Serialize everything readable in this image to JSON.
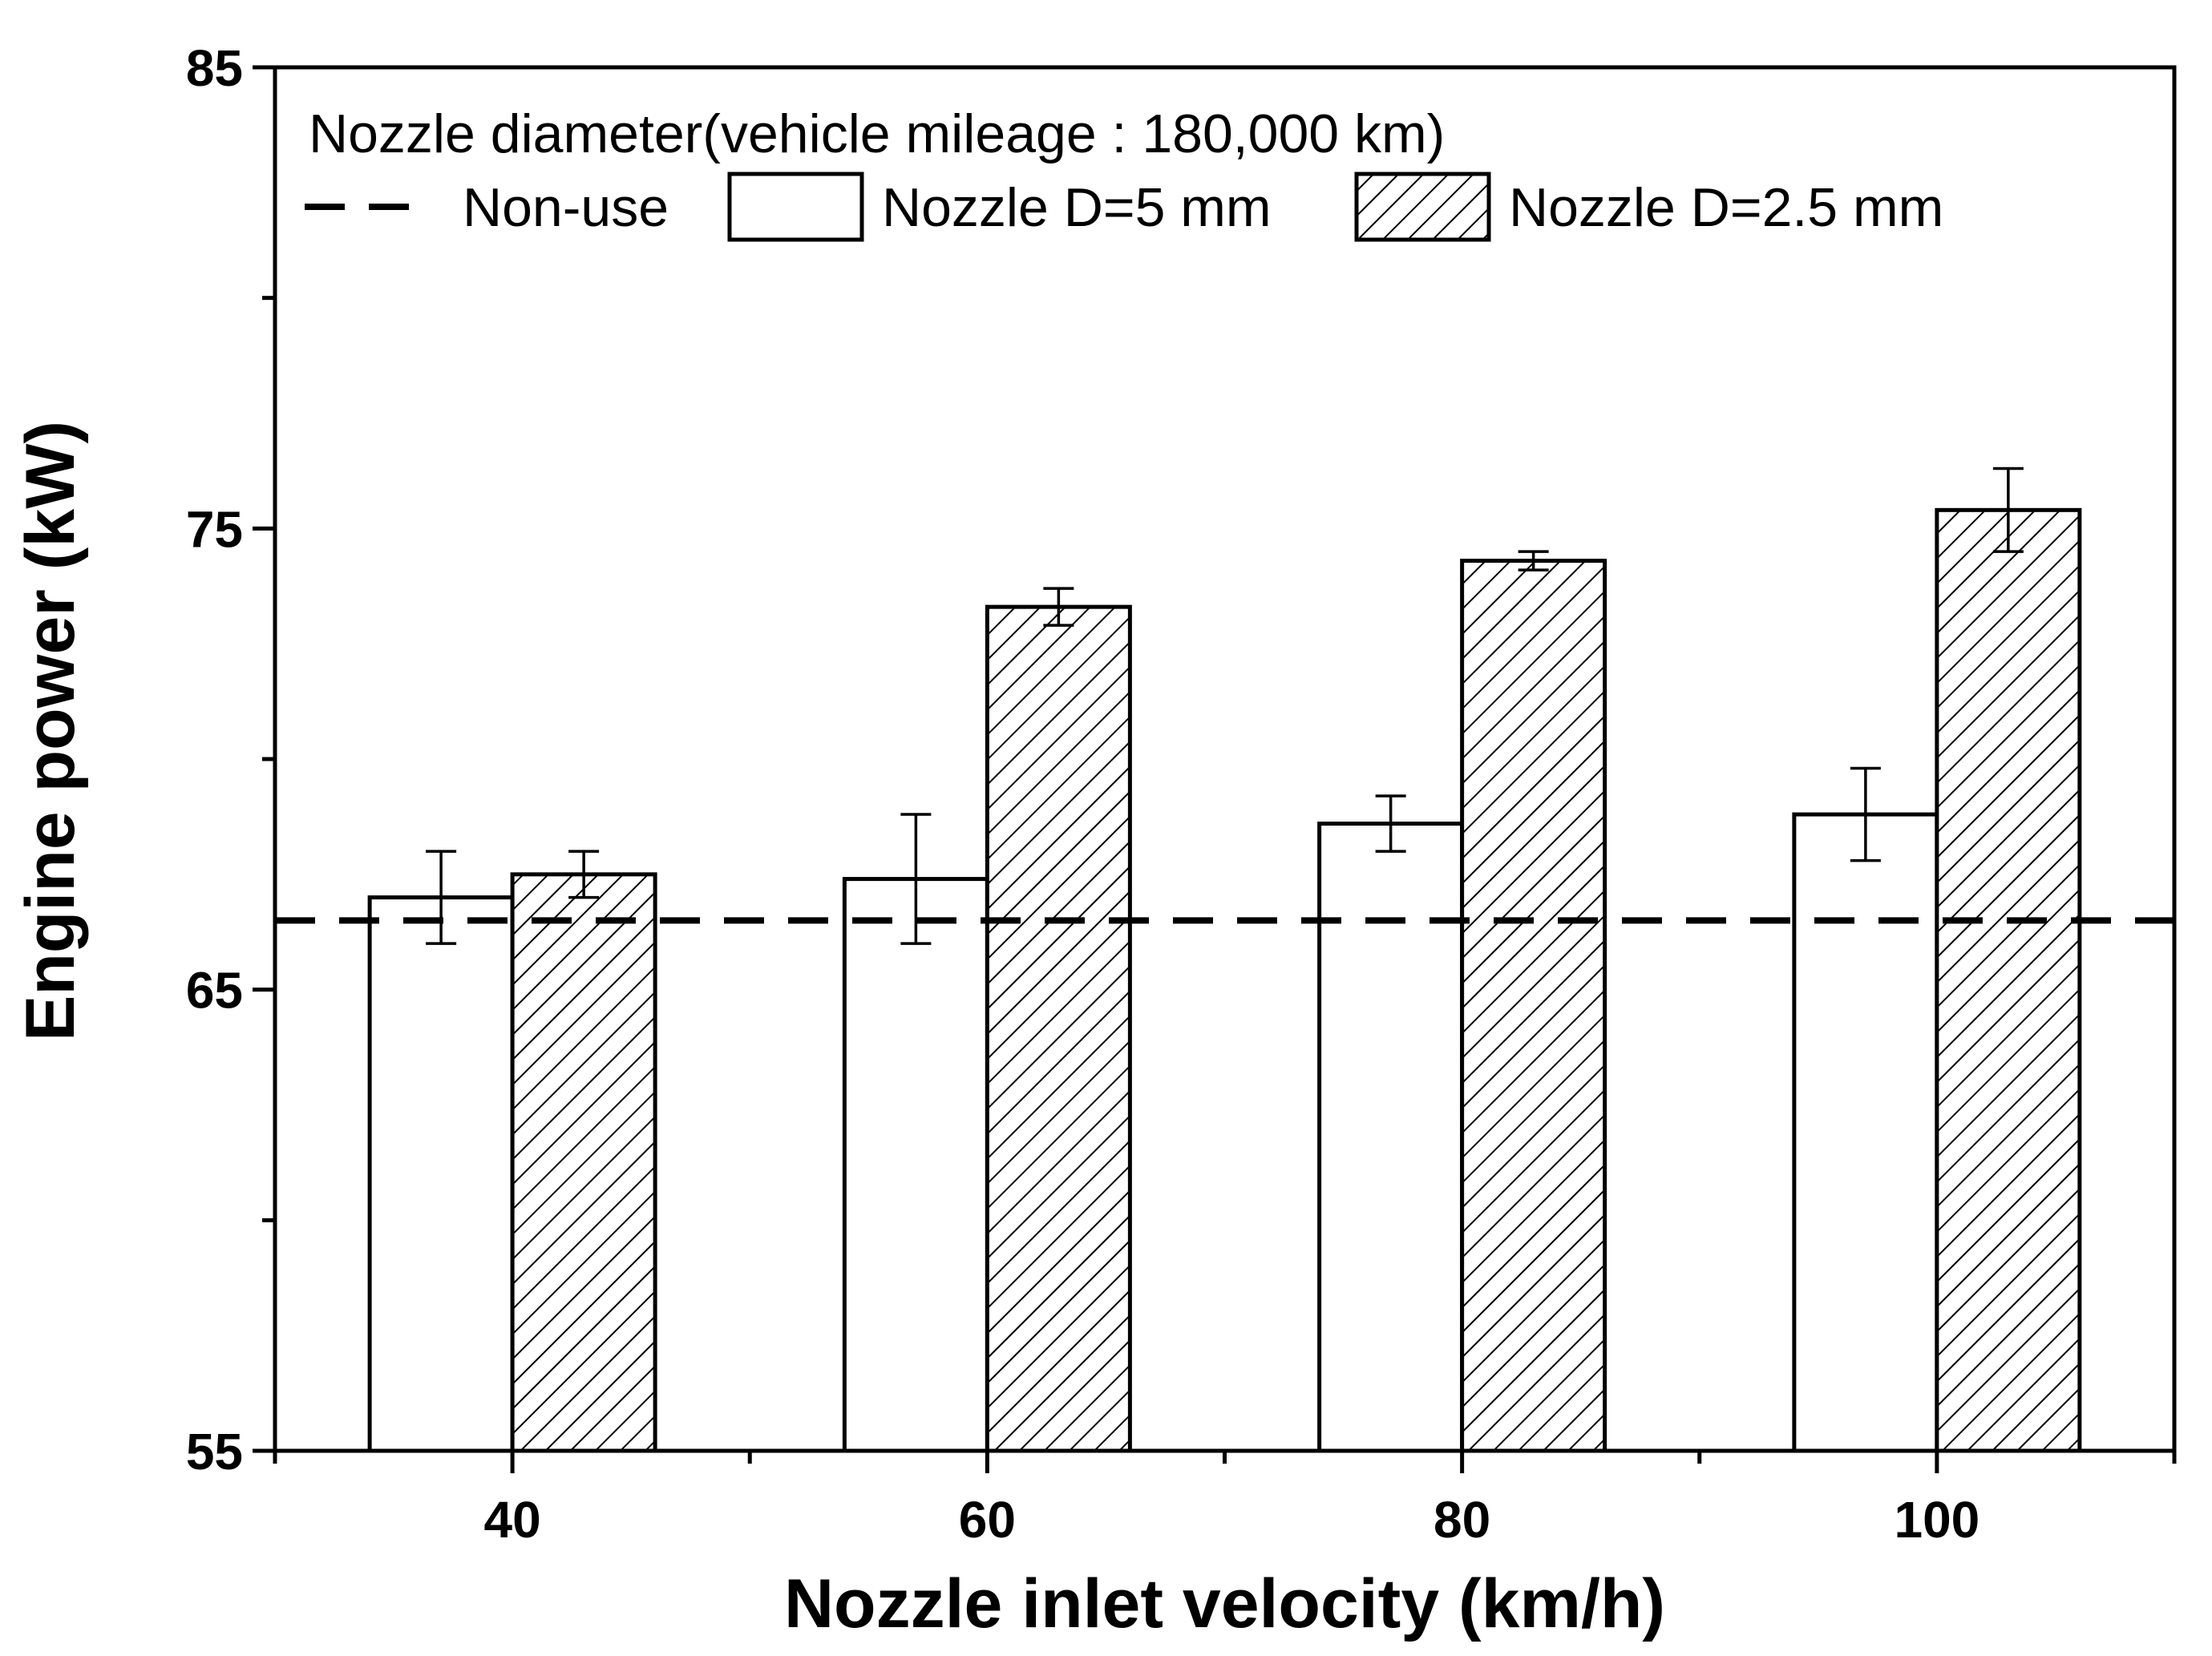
{
  "chart_data": {
    "type": "bar",
    "title": "Nozzle diameter(vehicle mileage : 180,000 km)",
    "xlabel": "Nozzle inlet velocity (km/h)",
    "ylabel": "Engine power (kW)",
    "categories": [
      "40",
      "60",
      "80",
      "100"
    ],
    "ylim": [
      55,
      85
    ],
    "xlim": [
      30,
      110
    ],
    "x": [
      40,
      60,
      80,
      100
    ],
    "yticks": [
      "55",
      "65",
      "75",
      "85"
    ],
    "series": [
      {
        "name": "Nozzle D=5 mm",
        "pattern": "white",
        "values": [
          67.0,
          67.4,
          68.6,
          68.8
        ],
        "errors": [
          1.0,
          1.4,
          0.6,
          1.0
        ]
      },
      {
        "name": "Nozzle D=2.5 mm",
        "pattern": "hatched",
        "values": [
          67.5,
          73.3,
          74.3,
          75.4
        ],
        "errors": [
          0.5,
          0.4,
          0.2,
          0.9
        ]
      }
    ],
    "reference_line": {
      "name": "Non-use",
      "value": 66.5,
      "style": "dashed"
    },
    "legend_position": "top-left"
  }
}
